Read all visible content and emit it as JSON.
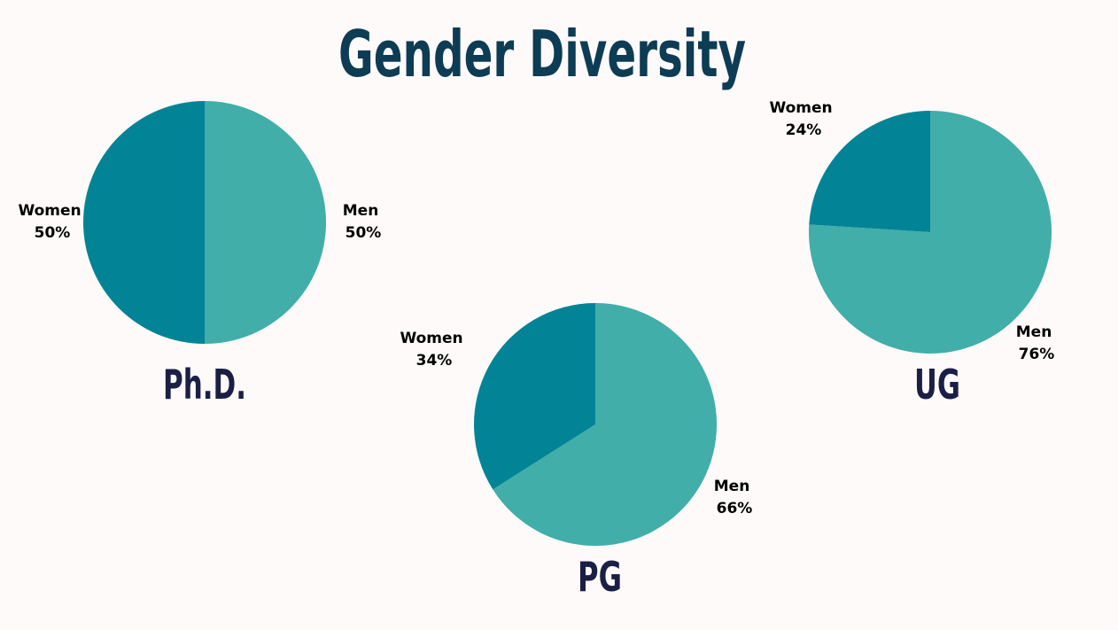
{
  "title": "Gender Diversity",
  "colors": {
    "background": "#fefaf9",
    "title": "#0d3c55",
    "chart_title": "#1b1f45",
    "women": "#038496",
    "men": "#41aea9",
    "label": "#000000"
  },
  "chart_data": [
    {
      "type": "pie",
      "title": "Ph.D.",
      "slices": [
        {
          "label": "Men",
          "value": 50,
          "display": "50%"
        },
        {
          "label": "Women",
          "value": 50,
          "display": "50%"
        }
      ]
    },
    {
      "type": "pie",
      "title": "PG",
      "slices": [
        {
          "label": "Men",
          "value": 66,
          "display": "66%"
        },
        {
          "label": "Women",
          "value": 34,
          "display": "34%"
        }
      ]
    },
    {
      "type": "pie",
      "title": "UG",
      "slices": [
        {
          "label": "Men",
          "value": 76,
          "display": "76%"
        },
        {
          "label": "Women",
          "value": 24,
          "display": "24%"
        }
      ]
    }
  ]
}
